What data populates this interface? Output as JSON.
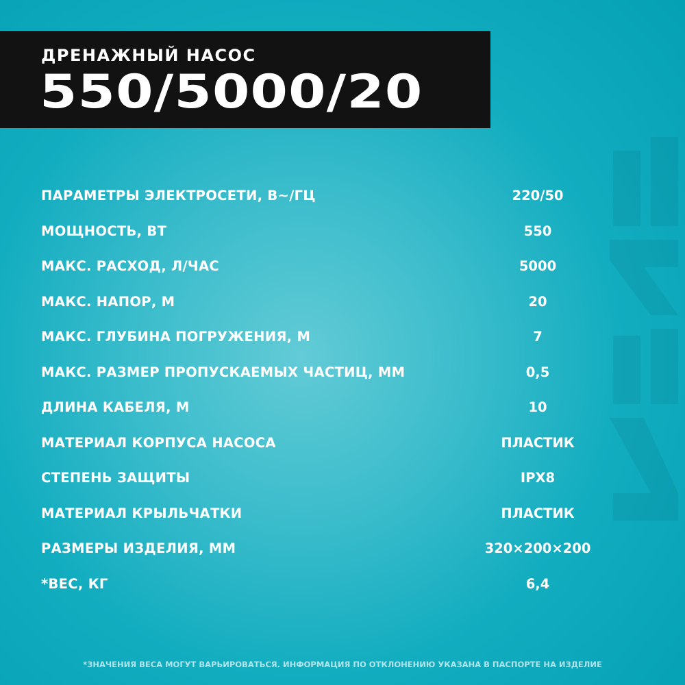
{
  "header": {
    "subtitle": "ДРЕНАЖНЫЙ НАСОС",
    "title": "550/5000/20"
  },
  "specs": [
    {
      "label": "ПАРАМЕТРЫ ЭЛЕКТРОСЕТИ, В~/ГЦ",
      "value": "220/50"
    },
    {
      "label": "МОЩНОСТЬ, ВТ",
      "value": "550"
    },
    {
      "label": "МАКС. РАСХОД, Л/ЧАС",
      "value": "5000"
    },
    {
      "label": "МАКС. НАПОР, М",
      "value": "20"
    },
    {
      "label": "МАКС. ГЛУБИНА ПОГРУЖЕНИЯ, М",
      "value": "7"
    },
    {
      "label": "МАКС. РАЗМЕР ПРОПУСКАЕМЫХ ЧАСТИЦ, ММ",
      "value": "0,5"
    },
    {
      "label": "ДЛИНА КАБЕЛЯ, М",
      "value": "10"
    },
    {
      "label": "МАТЕРИАЛ КОРПУСА НАСОСА",
      "value": "ПЛАСТИК"
    },
    {
      "label": "СТЕПЕНЬ ЗАЩИТЫ",
      "value": "IPX8"
    },
    {
      "label": "МАТЕРИАЛ КРЫЛЬЧАТКИ",
      "value": "ПЛАСТИК"
    },
    {
      "label": "РАЗМЕРЫ ИЗДЕЛИЯ, ММ",
      "value": "320×200×200"
    },
    {
      "label": "*ВЕС, КГ",
      "value": "6,4"
    }
  ],
  "footnote": "*ЗНАЧЕНИЯ ВЕСА МОГУТ ВАРЬИРОВАТЬСЯ. ИНФОРМАЦИЯ ПО ОТКЛОНЕНИЮ УКАЗАНА В ПАСПОРТЕ НА ИЗДЕЛИЕ",
  "colors": {
    "background": "#3dbdcc",
    "header": "#121212",
    "text": "#ffffff"
  }
}
